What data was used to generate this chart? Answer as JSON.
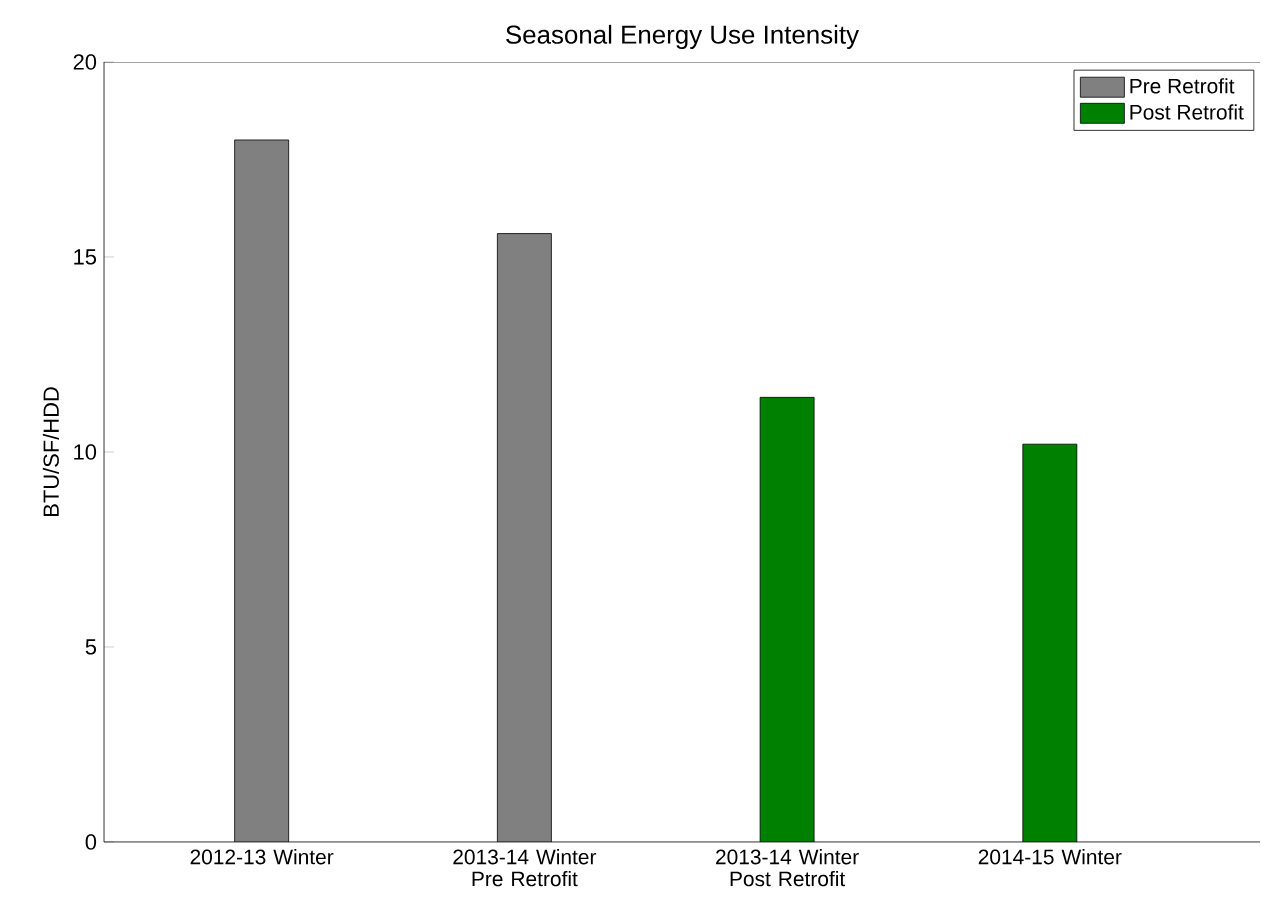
{
  "chart_data": {
    "type": "bar",
    "title": "Seasonal Energy Use Intensity",
    "ylabel": "BTU/SF/HDD",
    "categories": [
      "2012-13 Winter",
      "2013-14 Winter Pre Retrofit",
      "2013-14 Winter Post Retrofit",
      "2014-15 Winter"
    ],
    "series": [
      {
        "name": "Pre Retrofit",
        "color": "#808080",
        "values": [
          18,
          15.6,
          null,
          null
        ]
      },
      {
        "name": "Post Retrofit",
        "color": "#008000",
        "values": [
          null,
          null,
          11.4,
          10.2
        ]
      }
    ],
    "ylim": [
      0,
      20
    ],
    "yticks": [
      0,
      5,
      10,
      15,
      20
    ],
    "grid": false,
    "legend": "top right"
  }
}
